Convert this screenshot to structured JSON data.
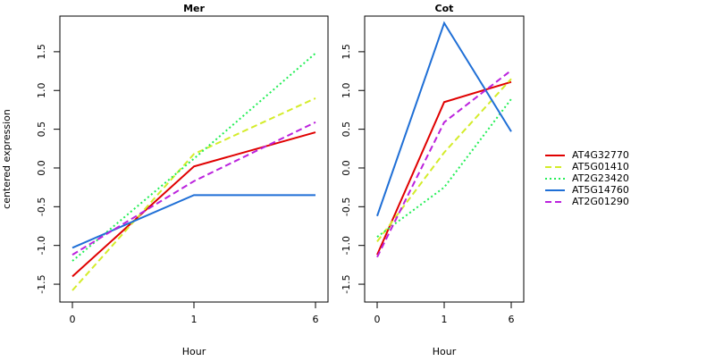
{
  "y_label": "centered expression",
  "legend": {
    "entries": [
      "AT4G32770",
      "AT5G01410",
      "AT2G23420",
      "AT5G14760",
      "AT2G01290"
    ]
  },
  "chart_data": [
    {
      "type": "line",
      "title": "Mer",
      "x_label": "Hour",
      "categories": [
        "0",
        "1",
        "6"
      ],
      "ylim": [
        -1.73,
        1.96
      ],
      "yticks": [
        -1.5,
        {
          "value": -1,
          "label": "-1.0"
        },
        -0.5,
        {
          "value": 0,
          "label": "0.0"
        },
        0.5,
        {
          "value": 1,
          "label": "1.0"
        },
        1.5
      ],
      "series": [
        {
          "color": "#e00000",
          "dash": "solid",
          "values": [
            -1.4,
            0.02,
            0.46
          ]
        },
        {
          "color": "#d4ec2a",
          "dash": "dashed",
          "values": [
            -1.58,
            0.18,
            0.9
          ]
        },
        {
          "color": "#22ee55",
          "dash": "dotted",
          "values": [
            -1.2,
            0.12,
            1.48
          ]
        },
        {
          "color": "#1f6fd6",
          "dash": "solid",
          "values": [
            -1.03,
            -0.35,
            -0.35
          ]
        },
        {
          "color": "#bb22dd",
          "dash": "dashed",
          "values": [
            -1.12,
            -0.17,
            0.59
          ]
        }
      ]
    },
    {
      "type": "line",
      "title": "Cot",
      "x_label": "Hour",
      "categories": [
        "0",
        "1",
        "6"
      ],
      "ylim": [
        -1.73,
        1.96
      ],
      "yticks": [
        -1.5,
        {
          "value": -1,
          "label": "-1.0"
        },
        -0.5,
        {
          "value": 0,
          "label": "0.0"
        },
        0.5,
        {
          "value": 1,
          "label": "1.0"
        },
        1.5
      ],
      "series": [
        {
          "color": "#e00000",
          "dash": "solid",
          "values": [
            -1.12,
            0.85,
            1.11
          ]
        },
        {
          "color": "#d4ec2a",
          "dash": "dashed",
          "values": [
            -0.95,
            0.2,
            1.15
          ]
        },
        {
          "color": "#22ee55",
          "dash": "dotted",
          "values": [
            -0.89,
            -0.25,
            0.89
          ]
        },
        {
          "color": "#1f6fd6",
          "dash": "solid",
          "values": [
            -0.62,
            1.87,
            0.47
          ]
        },
        {
          "color": "#bb22dd",
          "dash": "dashed",
          "values": [
            -1.15,
            0.59,
            1.26
          ]
        }
      ]
    }
  ]
}
